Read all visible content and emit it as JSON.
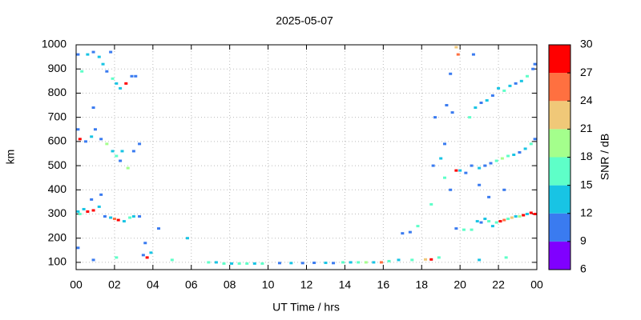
{
  "chart_data": {
    "type": "scatter",
    "title": "2025-05-07",
    "x_label": "UT Time / hrs",
    "y_label": "km",
    "xlim": [
      0,
      24
    ],
    "ylim": [
      70,
      1000
    ],
    "xticks": [
      {
        "value": 0,
        "label": "00"
      },
      {
        "value": 2,
        "label": "02"
      },
      {
        "value": 4,
        "label": "04"
      },
      {
        "value": 6,
        "label": "06"
      },
      {
        "value": 8,
        "label": "08"
      },
      {
        "value": 10,
        "label": "10"
      },
      12,
      14,
      16,
      18,
      20,
      22,
      {
        "value": 24,
        "label": "00"
      }
    ],
    "yticks": [
      100,
      200,
      300,
      400,
      500,
      600,
      700,
      800,
      900,
      1000
    ],
    "grid": true,
    "colorbar": {
      "label": "SNR / dB",
      "lim": [
        6,
        30
      ],
      "ticks": [
        6,
        9,
        12,
        15,
        18,
        21,
        24,
        27,
        30
      ],
      "colors": [
        "#8000ff",
        "#3a7bf0",
        "#18c4e4",
        "#5effc8",
        "#a4ff8c",
        "#f0c878",
        "#ff7040",
        "#ff0000"
      ]
    },
    "x": [
      0.1,
      0.2,
      0.4,
      0.6,
      0.9,
      1.2,
      1.5,
      1.8,
      2.0,
      2.2,
      2.5,
      2.8,
      3.0,
      3.3,
      1.3,
      0.8,
      0.1,
      0.2,
      0.5,
      0.8,
      1.0,
      1.3,
      1.6,
      1.9,
      2.1,
      2.4,
      2.7,
      3.0,
      3.3,
      2.3,
      0.1,
      0.3,
      0.6,
      0.9,
      1.2,
      1.4,
      1.6,
      1.9,
      2.1,
      2.3,
      2.6,
      2.9,
      3.1,
      0.9,
      1.8,
      0.1,
      3.5,
      3.7,
      3.9,
      3.6,
      4.3,
      5.8,
      0.9,
      2.1,
      5.0,
      6.9,
      7.3,
      7.7,
      8.1,
      8.5,
      8.9,
      9.3,
      9.7,
      10.6,
      11.2,
      11.8,
      12.4,
      13.0,
      13.4,
      13.9,
      14.3,
      14.7,
      15.1,
      15.5,
      15.9,
      16.3,
      16.8,
      17.5,
      18.2,
      18.5,
      18.9,
      17.0,
      17.4,
      17.8,
      18.5,
      18.6,
      18.7,
      19.0,
      19.2,
      19.5,
      19.8,
      20.0,
      20.3,
      20.6,
      19.2,
      19.3,
      19.6,
      19.8,
      20.2,
      20.6,
      20.9,
      21.1,
      21.3,
      21.5,
      21.7,
      21.9,
      22.1,
      22.3,
      22.5,
      22.7,
      22.9,
      23.1,
      23.3,
      23.5,
      23.7,
      23.9,
      22.4,
      21.0,
      21.0,
      21.3,
      21.6,
      21.9,
      22.2,
      22.5,
      22.8,
      23.1,
      23.4,
      23.7,
      23.9,
      21.5,
      21.0,
      22.3,
      20.5,
      20.8,
      21.1,
      21.4,
      21.7,
      22.0,
      22.3,
      22.6,
      22.9,
      23.2,
      23.5,
      23.8,
      23.9,
      19.5,
      19.9,
      20.7,
      19.8
    ],
    "values": [
      310,
      300,
      320,
      310,
      315,
      330,
      290,
      285,
      280,
      275,
      270,
      285,
      290,
      290,
      380,
      360,
      650,
      610,
      600,
      620,
      650,
      610,
      590,
      560,
      540,
      560,
      490,
      560,
      590,
      520,
      960,
      890,
      960,
      970,
      950,
      920,
      890,
      860,
      840,
      820,
      840,
      870,
      870,
      740,
      970,
      160,
      130,
      120,
      140,
      180,
      240,
      200,
      110,
      120,
      110,
      100,
      100,
      95,
      95,
      95,
      95,
      95,
      95,
      97,
      97,
      97,
      98,
      98,
      97,
      100,
      100,
      100,
      100,
      100,
      100,
      105,
      110,
      110,
      112,
      112,
      120,
      220,
      225,
      250,
      340,
      500,
      700,
      530,
      450,
      400,
      480,
      480,
      470,
      500,
      590,
      750,
      720,
      240,
      235,
      235,
      270,
      265,
      280,
      270,
      250,
      265,
      270,
      275,
      280,
      285,
      290,
      290,
      295,
      300,
      305,
      300,
      120,
      110,
      490,
      500,
      510,
      520,
      530,
      540,
      545,
      555,
      570,
      590,
      610,
      370,
      420,
      400,
      700,
      740,
      760,
      770,
      790,
      820,
      810,
      830,
      840,
      850,
      870,
      900,
      920,
      880,
      960,
      960,
      990
    ],
    "snr": [
      12,
      15,
      12,
      27,
      27,
      12,
      9,
      12,
      24,
      27,
      12,
      15,
      12,
      9,
      9,
      9,
      9,
      27,
      9,
      12,
      9,
      9,
      18,
      12,
      15,
      12,
      18,
      9,
      9,
      9,
      9,
      15,
      12,
      9,
      12,
      12,
      9,
      15,
      12,
      12,
      27,
      9,
      9,
      9,
      9,
      9,
      9,
      27,
      12,
      9,
      9,
      12,
      9,
      15,
      15,
      15,
      12,
      15,
      12,
      15,
      15,
      12,
      15,
      9,
      12,
      9,
      9,
      12,
      9,
      15,
      12,
      15,
      18,
      12,
      24,
      15,
      12,
      15,
      21,
      27,
      15,
      9,
      9,
      15,
      15,
      9,
      9,
      12,
      15,
      9,
      27,
      12,
      9,
      9,
      9,
      9,
      9,
      9,
      15,
      15,
      12,
      9,
      12,
      15,
      12,
      15,
      27,
      24,
      15,
      21,
      12,
      18,
      27,
      12,
      27,
      30,
      15,
      12,
      12,
      9,
      9,
      15,
      18,
      15,
      12,
      9,
      12,
      15,
      9,
      9,
      9,
      9,
      15,
      12,
      9,
      12,
      9,
      12,
      15,
      12,
      9,
      12,
      15,
      9,
      9,
      9,
      24,
      9,
      21
    ]
  }
}
